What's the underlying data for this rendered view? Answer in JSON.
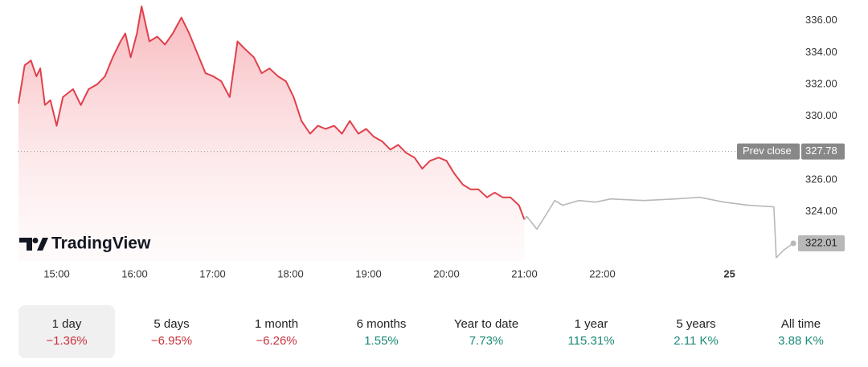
{
  "chart_data": {
    "type": "line",
    "watermark": "TradingView",
    "xlim": [
      14.5,
      24.5
    ],
    "ylim": [
      320.9,
      337.3
    ],
    "xticks": [
      {
        "value": 15,
        "label": "15:00"
      },
      {
        "value": 16,
        "label": "16:00"
      },
      {
        "value": 17,
        "label": "17:00"
      },
      {
        "value": 18,
        "label": "18:00"
      },
      {
        "value": 19,
        "label": "19:00"
      },
      {
        "value": 20,
        "label": "20:00"
      },
      {
        "value": 21,
        "label": "21:00"
      },
      {
        "value": 22,
        "label": "22:00"
      },
      {
        "value": 23.63,
        "label": "25"
      }
    ],
    "yticks": [
      {
        "value": 324,
        "label": "324.00"
      },
      {
        "value": 326,
        "label": "326.00"
      },
      {
        "value": 330,
        "label": "330.00"
      },
      {
        "value": 332,
        "label": "332.00"
      },
      {
        "value": 334,
        "label": "334.00"
      },
      {
        "value": 336,
        "label": "336.00"
      }
    ],
    "prev_close": {
      "label": "Prev close",
      "value": 327.78
    },
    "last_price": 322.01,
    "series": [
      {
        "color": "#e0404c",
        "x": [
          14.51,
          14.59,
          14.67,
          14.74,
          14.79,
          14.85,
          14.92,
          15.0,
          15.08,
          15.21,
          15.31,
          15.41,
          15.52,
          15.62,
          15.72,
          15.82,
          15.88,
          15.95,
          16.03,
          16.09,
          16.19,
          16.29,
          16.39,
          16.49,
          16.6,
          16.7,
          16.8,
          16.91,
          17.01,
          17.11,
          17.22,
          17.32,
          17.42,
          17.53,
          17.63,
          17.73,
          17.84,
          17.94,
          18.04,
          18.14,
          18.25,
          18.35,
          18.45,
          18.56,
          18.66,
          18.76,
          18.87,
          18.97,
          19.07,
          19.18,
          19.28,
          19.38,
          19.48,
          19.59,
          19.69,
          19.79,
          19.9,
          20.0,
          20.1,
          20.21,
          20.31,
          20.41,
          20.52,
          20.62,
          20.72,
          20.82,
          20.93,
          21.0
        ],
        "values": [
          330.8,
          333.2,
          333.5,
          332.5,
          333.0,
          330.7,
          331.0,
          329.4,
          331.2,
          331.7,
          330.7,
          331.7,
          332.0,
          332.5,
          333.7,
          334.7,
          335.2,
          333.7,
          335.2,
          336.9,
          334.7,
          335.0,
          334.5,
          335.2,
          336.2,
          335.2,
          334.0,
          332.7,
          332.5,
          332.2,
          331.2,
          334.7,
          334.2,
          333.7,
          332.7,
          333.0,
          332.5,
          332.2,
          331.2,
          329.7,
          328.9,
          329.4,
          329.2,
          329.4,
          328.9,
          329.7,
          328.9,
          329.2,
          328.7,
          328.4,
          327.9,
          328.2,
          327.7,
          327.4,
          326.7,
          327.2,
          327.4,
          327.2,
          326.4,
          325.7,
          325.4,
          325.4,
          324.9,
          325.2,
          324.9,
          324.9,
          324.4,
          323.5
        ]
      },
      {
        "color": "#b8b8b8",
        "x": [
          21.0,
          21.03,
          21.16,
          21.29,
          21.39,
          21.49,
          21.7,
          21.91,
          22.11,
          22.53,
          22.94,
          23.25,
          23.56,
          23.87,
          24.2,
          24.23,
          24.33,
          24.45
        ],
        "values": [
          323.5,
          323.7,
          322.9,
          323.9,
          324.7,
          324.4,
          324.7,
          324.6,
          324.8,
          324.7,
          324.8,
          324.9,
          324.6,
          324.4,
          324.3,
          321.1,
          321.6,
          322.01
        ]
      }
    ]
  },
  "tabs": {
    "selected": 0,
    "items": [
      {
        "label": "1 day",
        "change": "−1.36%"
      },
      {
        "label": "5 days",
        "change": "−6.95%"
      },
      {
        "label": "1 month",
        "change": "−6.26%"
      },
      {
        "label": "6 months",
        "change": "1.55%"
      },
      {
        "label": "Year to date",
        "change": "7.73%"
      },
      {
        "label": "1 year",
        "change": "115.31%"
      },
      {
        "label": "5 years",
        "change": "2.11 K%"
      },
      {
        "label": "All time",
        "change": "3.88 K%"
      }
    ]
  }
}
